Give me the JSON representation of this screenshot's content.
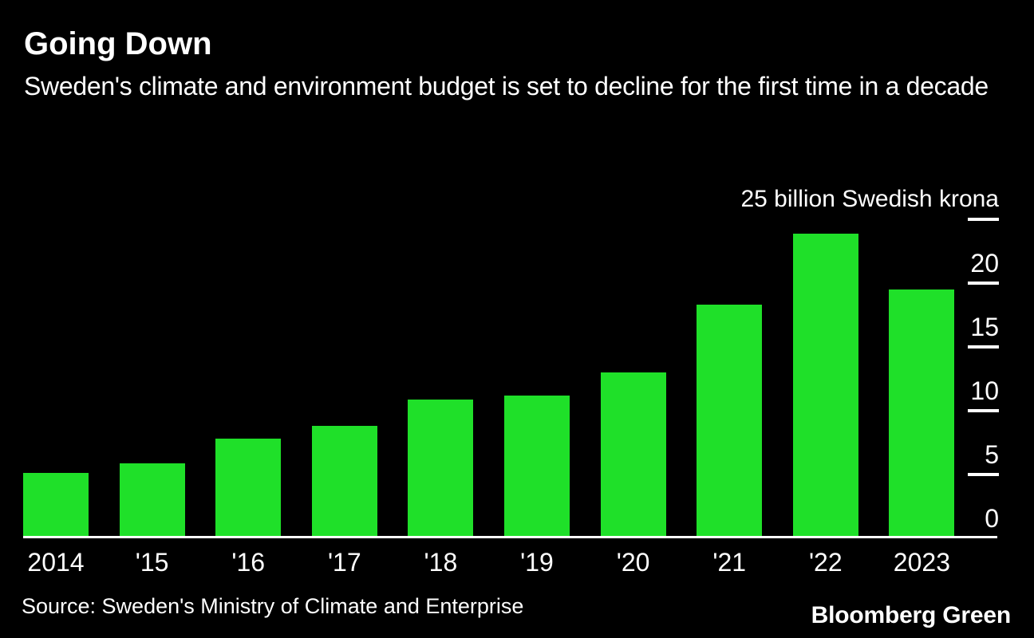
{
  "chart_data": {
    "type": "bar",
    "title": "Going Down",
    "subtitle": "Sweden's climate and environment budget is set to decline for the first time in a decade",
    "unit_label": "25 billion Swedish krona",
    "categories": [
      "2014",
      "'15",
      "'16",
      "'17",
      "'18",
      "'19",
      "'20",
      "'21",
      "'22",
      "2023"
    ],
    "values": [
      5.1,
      5.9,
      7.8,
      8.8,
      10.9,
      11.2,
      13.0,
      18.3,
      23.9,
      19.5
    ],
    "ylabel": "billion Swedish krona",
    "ylim": [
      0,
      25
    ],
    "yticks": [
      0,
      5,
      10,
      15,
      20,
      25
    ],
    "ytick_labels_shown": [
      "0",
      "5",
      "10",
      "15",
      "20"
    ],
    "grid": "off",
    "legend": "none",
    "colors": {
      "background": "#000000",
      "bar": "#1FE029",
      "text": "#FFFFFF",
      "axis": "#FFFFFF"
    }
  },
  "footer": {
    "source": "Source: Sweden's Ministry of Climate and Enterprise",
    "brand": "Bloomberg Green"
  }
}
